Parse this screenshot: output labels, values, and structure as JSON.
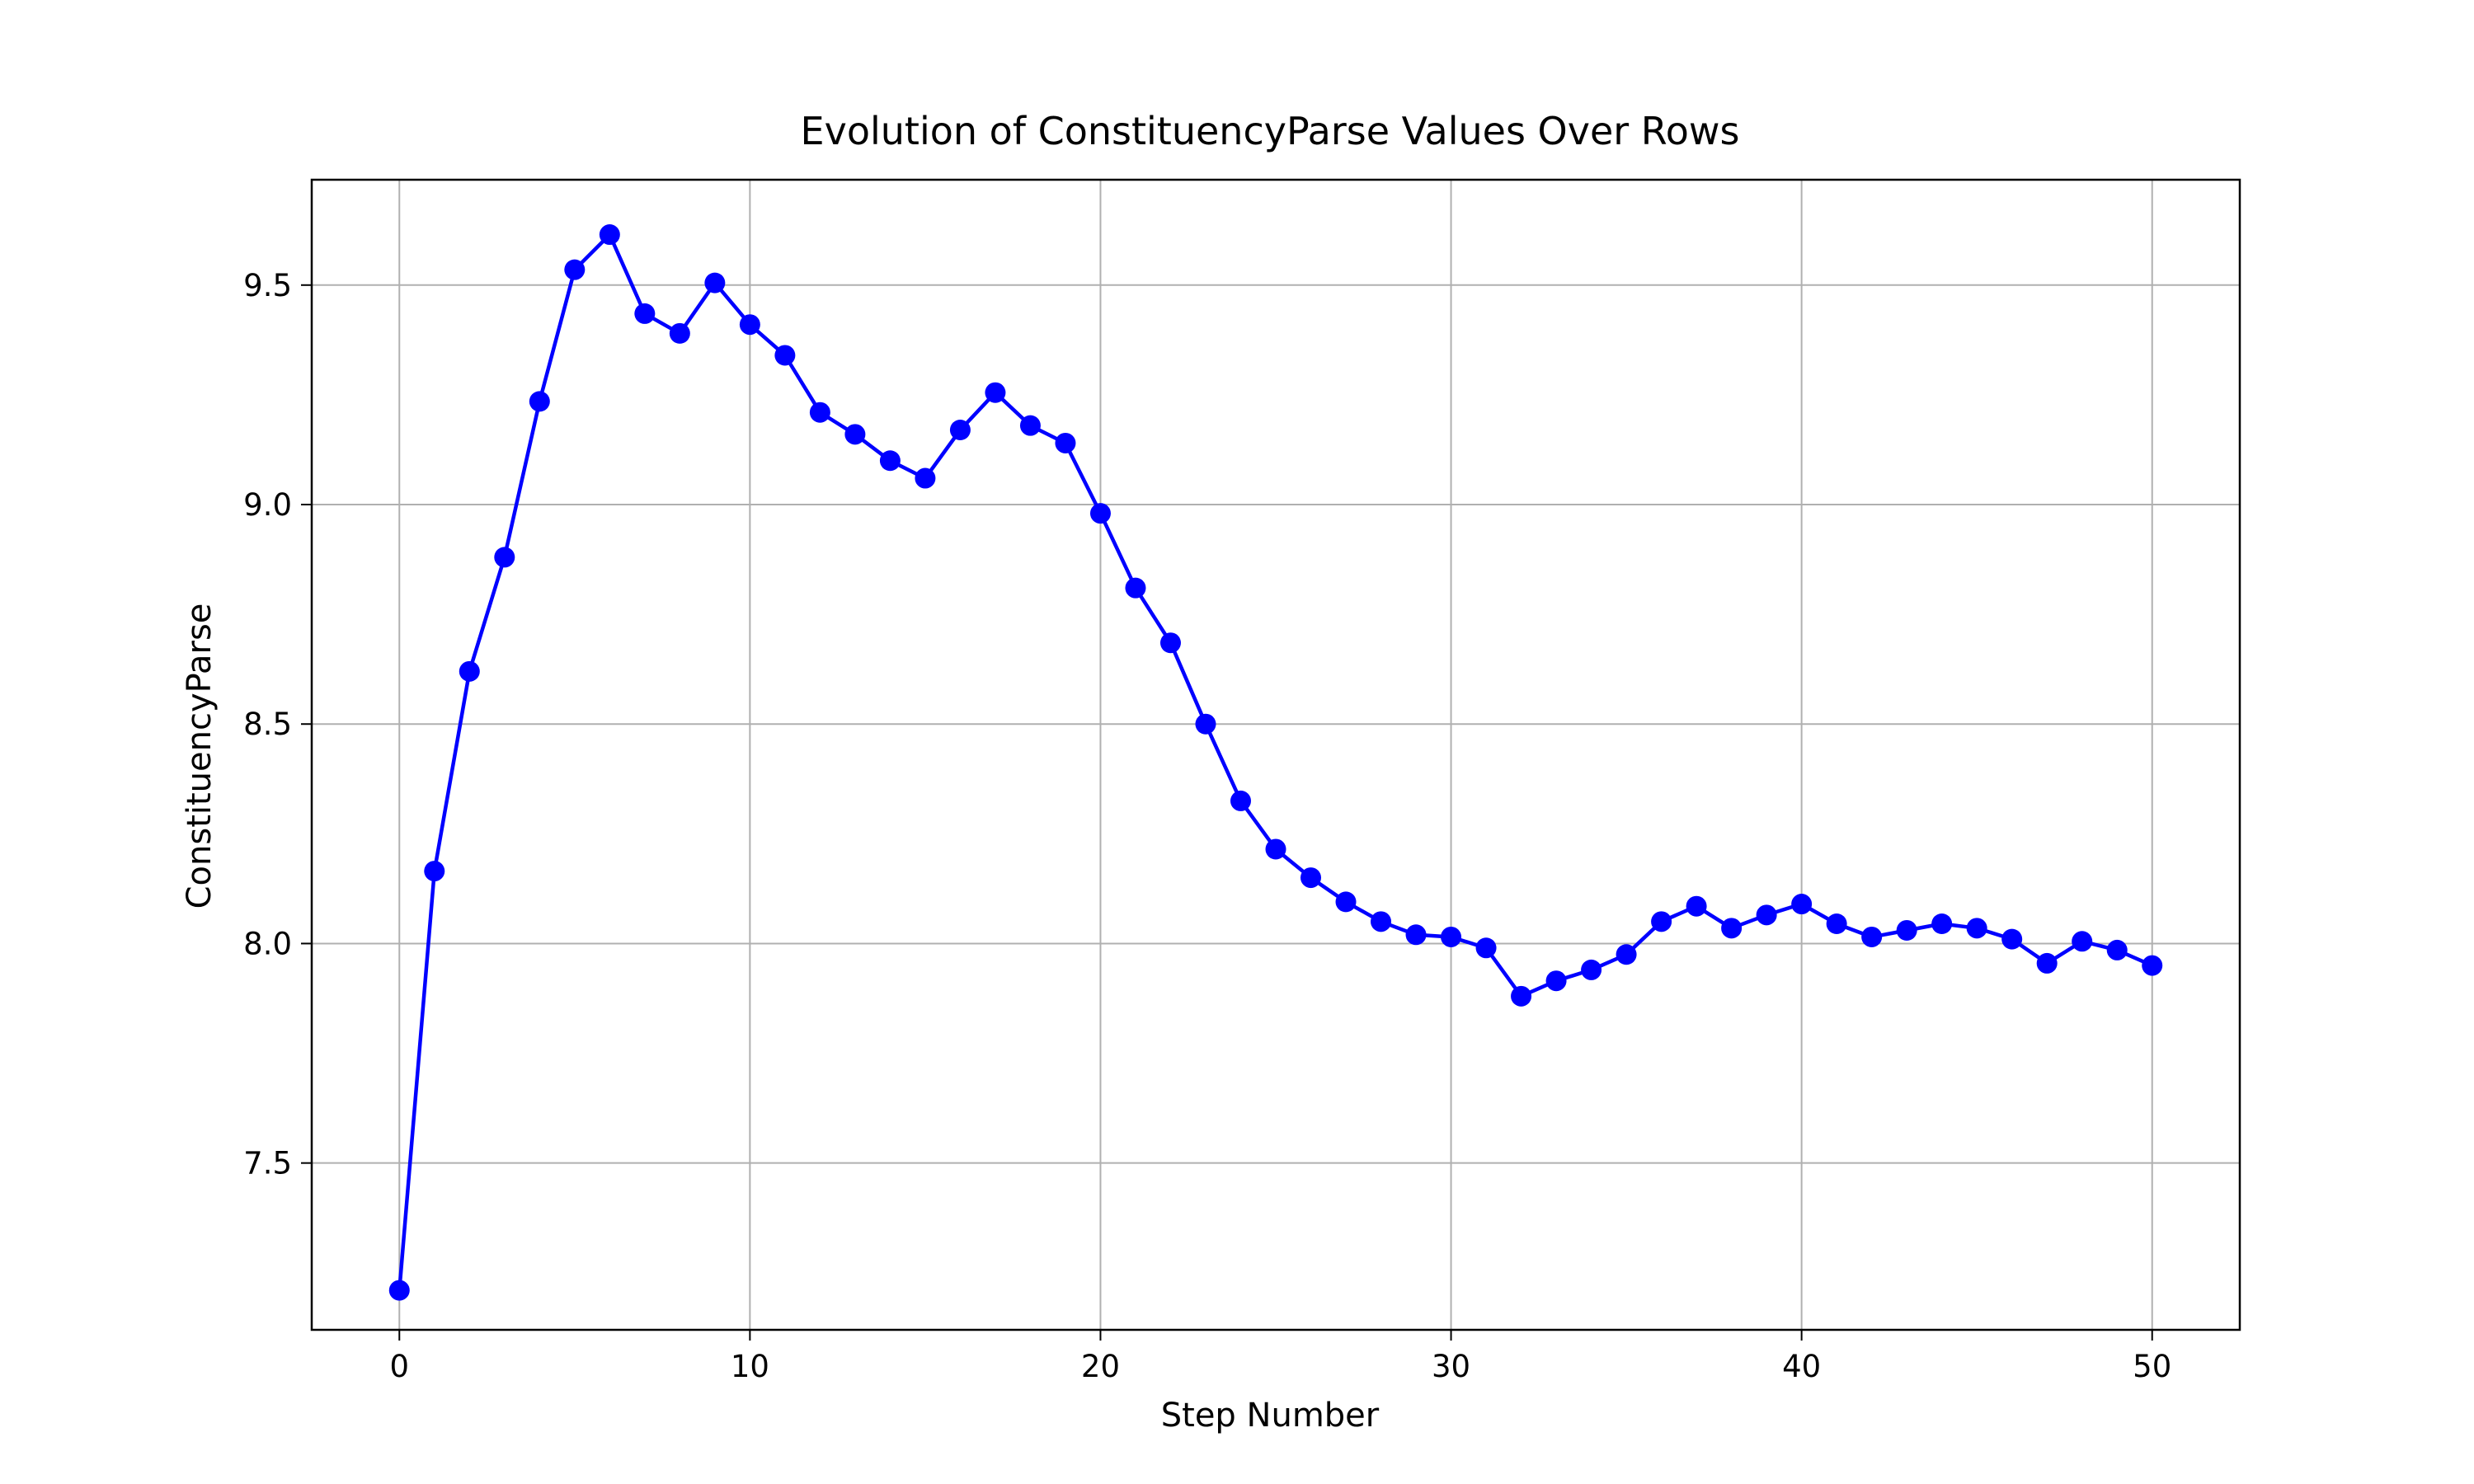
{
  "chart_data": {
    "type": "line",
    "title": "Evolution of ConstituencyParse Values Over Rows",
    "xlabel": "Step Number",
    "ylabel": "ConstituencyParse",
    "xlim": [
      -2.5,
      52.5
    ],
    "ylim": [
      7.12,
      9.74
    ],
    "xticks": [
      0,
      10,
      20,
      30,
      40,
      50
    ],
    "yticks": [
      7.5,
      8.0,
      8.5,
      9.0,
      9.5
    ],
    "ytick_labels": [
      "7.5",
      "8.0",
      "8.5",
      "9.0",
      "9.5"
    ],
    "grid": true,
    "color": "#0000ff",
    "marker": "circle",
    "series": [
      {
        "x": [
          0,
          1,
          2,
          3,
          4,
          5,
          6,
          7,
          8,
          9,
          10,
          11,
          12,
          13,
          14,
          15,
          16,
          17,
          18,
          19,
          20,
          21,
          22,
          23,
          24,
          25,
          26,
          27,
          28,
          29,
          30,
          31,
          32,
          33,
          34,
          35,
          36,
          37,
          38,
          39,
          40,
          41,
          42,
          43,
          44,
          45,
          46,
          47,
          48,
          49,
          50
        ],
        "values": [
          7.21,
          8.165,
          8.62,
          8.88,
          9.235,
          9.535,
          9.615,
          9.435,
          9.39,
          9.505,
          9.41,
          9.34,
          9.21,
          9.16,
          9.1,
          9.06,
          9.17,
          9.255,
          9.18,
          9.14,
          8.98,
          8.81,
          8.685,
          8.5,
          8.325,
          8.215,
          8.15,
          8.095,
          8.05,
          8.02,
          8.015,
          7.99,
          7.88,
          7.915,
          7.94,
          7.975,
          8.05,
          8.085,
          8.035,
          8.065,
          8.09,
          8.045,
          8.015,
          8.03,
          8.045,
          8.035,
          8.01,
          7.955,
          8.005,
          7.985,
          7.95
        ]
      }
    ]
  }
}
